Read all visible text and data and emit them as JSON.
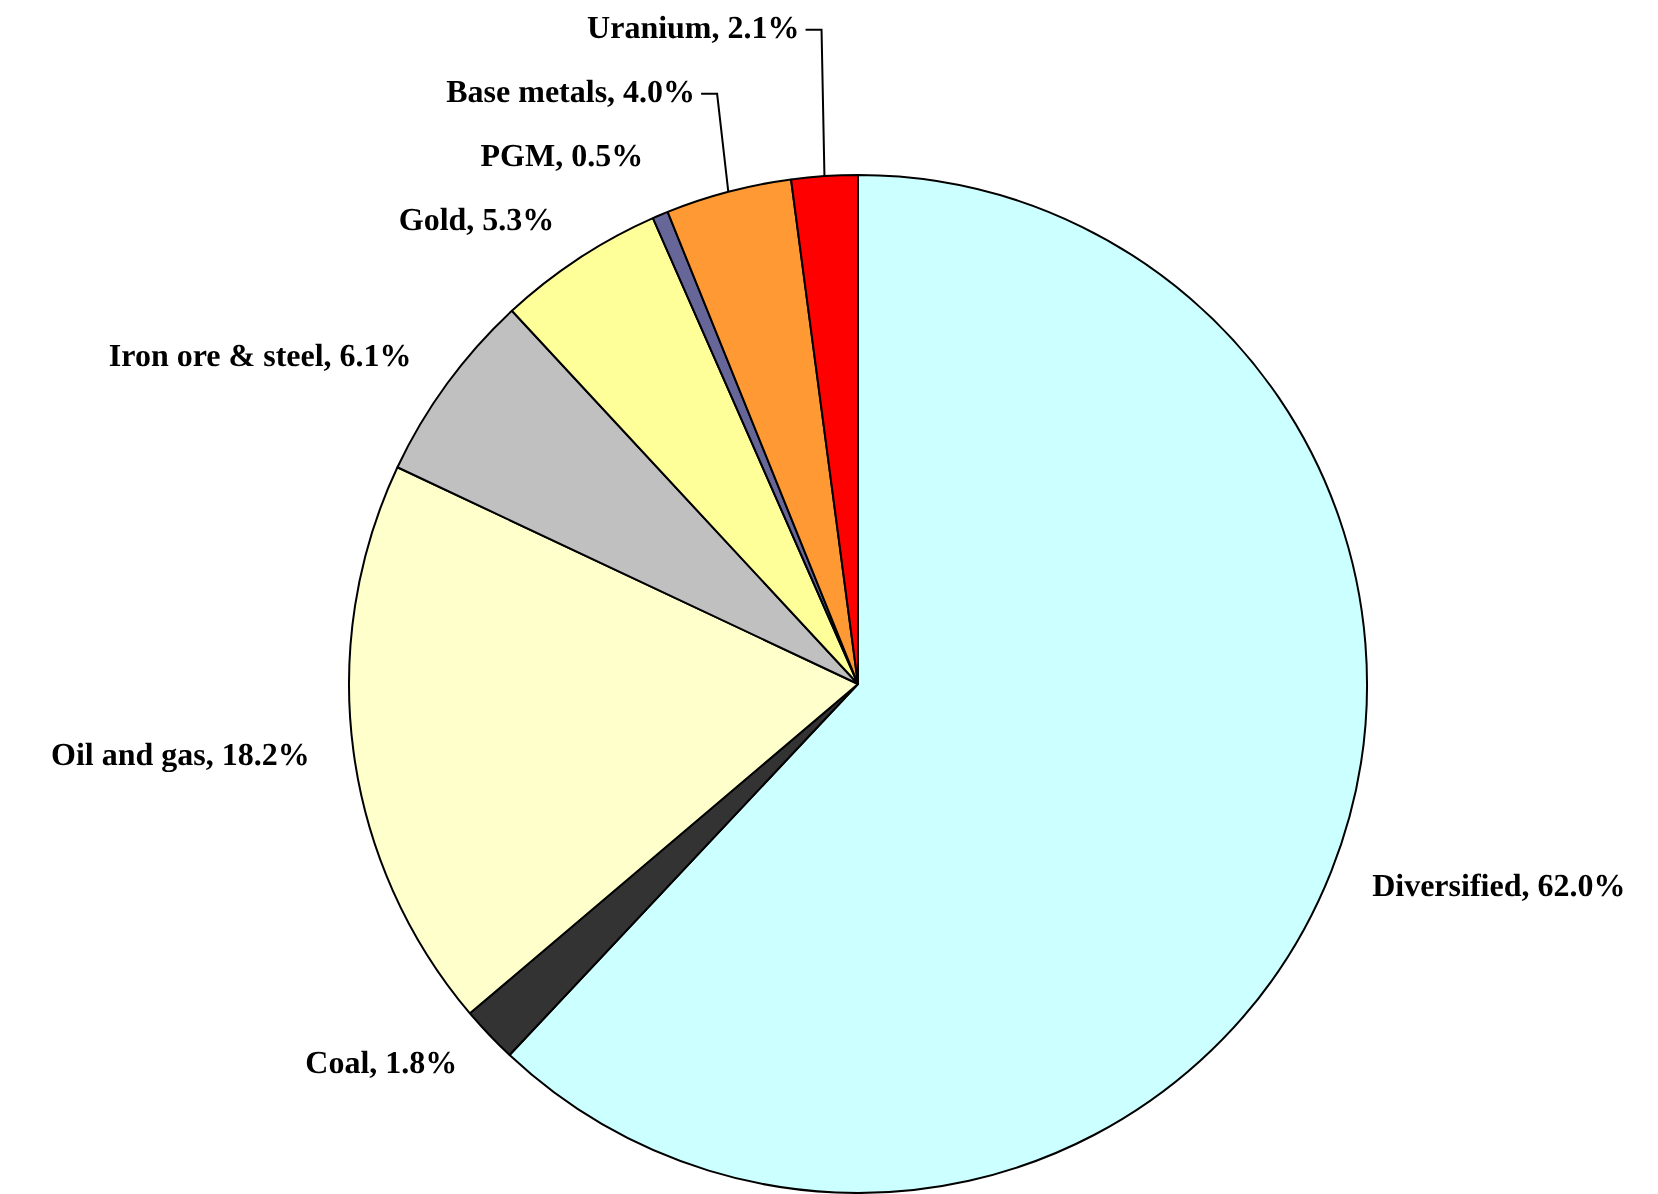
{
  "chart_data": {
    "type": "pie",
    "categories": [
      "Diversified",
      "Coal",
      "Oil and gas",
      "Iron ore & steel",
      "Gold",
      "PGM",
      "Base metals",
      "Uranium"
    ],
    "values": [
      62.0,
      1.8,
      18.2,
      6.1,
      5.3,
      0.5,
      4.0,
      2.1
    ],
    "value_labels": [
      "62.0%",
      "1.8%",
      "18.2%",
      "6.1%",
      "5.3%",
      "0.5%",
      "4.0%",
      "2.1%"
    ],
    "colors": [
      "#ccffff",
      "#333333",
      "#ffffcc",
      "#c0c0c0",
      "#ffff99",
      "#666699",
      "#ff9933",
      "#ff0000"
    ],
    "legend": false
  }
}
